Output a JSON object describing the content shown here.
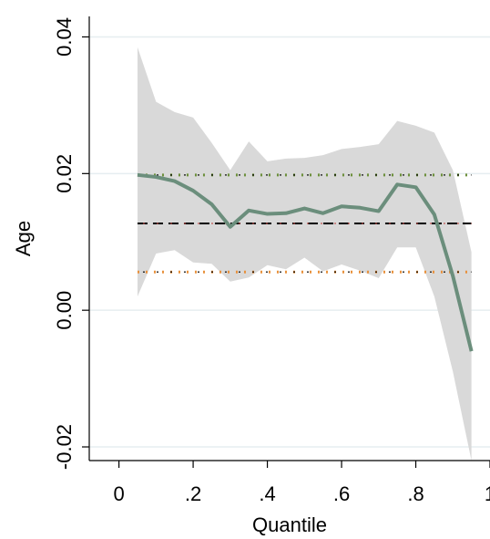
{
  "chart_data": {
    "type": "line",
    "xlabel": "Quantile",
    "ylabel": "Age",
    "xlim": [
      -0.08,
      1.0
    ],
    "ylim": [
      -0.022,
      0.043
    ],
    "x_ticks": [
      0,
      0.2,
      0.4,
      0.6,
      0.8,
      1.0
    ],
    "x_tick_labels": [
      "0",
      ".2",
      ".4",
      ".6",
      ".8",
      "1"
    ],
    "y_ticks": [
      -0.02,
      0.0,
      0.02,
      0.04
    ],
    "y_tick_labels": [
      "-0.02",
      "0.00",
      "0.02",
      "0.04"
    ],
    "grid": true,
    "x": [
      0.05,
      0.1,
      0.15,
      0.2,
      0.25,
      0.3,
      0.35,
      0.4,
      0.45,
      0.5,
      0.55,
      0.6,
      0.65,
      0.7,
      0.75,
      0.8,
      0.85,
      0.9,
      0.95
    ],
    "series": [
      {
        "values": [
          0.0198,
          0.0195,
          0.0189,
          0.0175,
          0.0155,
          0.0122,
          0.0146,
          0.0141,
          0.0142,
          0.0149,
          0.0142,
          0.0152,
          0.015,
          0.0145,
          0.0184,
          0.018,
          0.014,
          0.005,
          -0.006
        ],
        "color": "#6b8e7c"
      }
    ],
    "band": {
      "upper": [
        0.0385,
        0.0305,
        0.029,
        0.0282,
        0.0245,
        0.0205,
        0.0247,
        0.0218,
        0.0222,
        0.0223,
        0.0227,
        0.0236,
        0.0239,
        0.0243,
        0.0277,
        0.027,
        0.026,
        0.0205,
        0.0085
      ],
      "lower": [
        0.002,
        0.0083,
        0.0088,
        0.007,
        0.0068,
        0.0042,
        0.0048,
        0.0066,
        0.006,
        0.0077,
        0.0057,
        0.0067,
        0.0058,
        0.0047,
        0.0092,
        0.0092,
        0.002,
        -0.009,
        -0.022
      ],
      "color": "#d9d9d9"
    },
    "reference_lines": [
      {
        "value": 0.0198,
        "style": "dotted",
        "colors": [
          "#6b8e3a",
          "#000000"
        ]
      },
      {
        "value": 0.0127,
        "style": "dashed",
        "colors": [
          "#000000",
          "#c0504d"
        ]
      },
      {
        "value": 0.0056,
        "style": "dotted",
        "colors": [
          "#e8903a",
          "#000000"
        ]
      }
    ],
    "colors": {
      "background": "#ffffff",
      "plot_background": "#ffffff",
      "grid": "#e6eef0",
      "axis": "#000000"
    }
  }
}
